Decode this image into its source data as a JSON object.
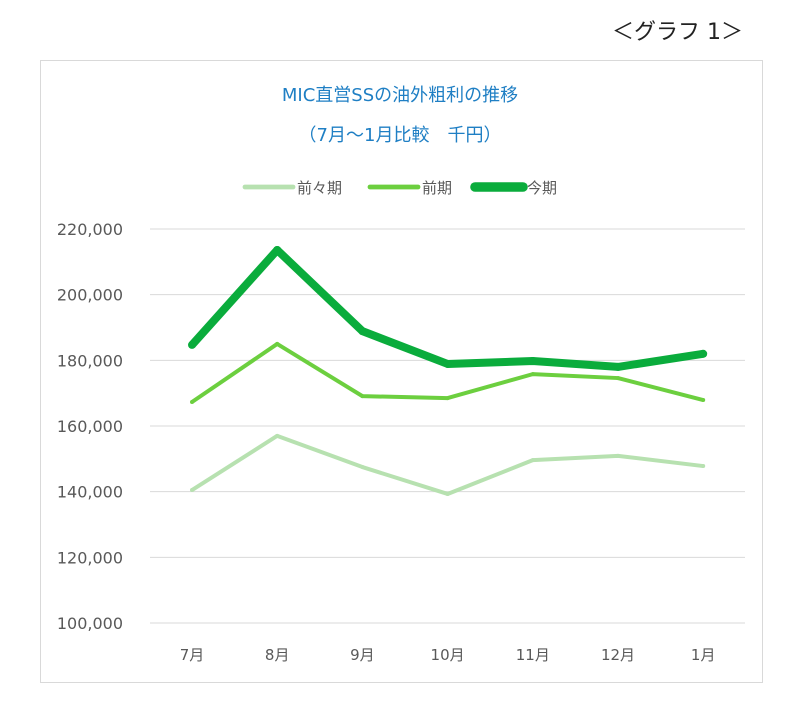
{
  "figure_label": "＜グラフ 1＞",
  "chart_data": {
    "type": "line",
    "title": "MIC直営SSの油外粗利の推移",
    "subtitle": "（7月～1月比較　千円）",
    "xlabel": "",
    "ylabel": "",
    "categories": [
      "7月",
      "8月",
      "9月",
      "10月",
      "11月",
      "12月",
      "1月"
    ],
    "ylim": [
      100000,
      220000
    ],
    "yticks": [
      100000,
      120000,
      140000,
      160000,
      180000,
      200000,
      220000
    ],
    "ytick_labels": [
      "100,000",
      "120,000",
      "140,000",
      "160,000",
      "180,000",
      "200,000",
      "220,000"
    ],
    "grid": true,
    "legend_placement": "top",
    "series": [
      {
        "name": "前々期",
        "color": "#b7e1b0",
        "values": [
          140500,
          157000,
          147500,
          139300,
          149600,
          150900,
          147800
        ]
      },
      {
        "name": "前期",
        "color": "#6ccf3f",
        "values": [
          167300,
          185000,
          169100,
          168500,
          175800,
          174600,
          167900
        ]
      },
      {
        "name": "今期",
        "color": "#0aac3c",
        "values": [
          184700,
          213600,
          188900,
          178900,
          179800,
          178000,
          182000
        ]
      }
    ],
    "colors": {
      "title": "#1f7fc4",
      "axis_text": "#595959",
      "grid": "#d9d9d9"
    }
  }
}
